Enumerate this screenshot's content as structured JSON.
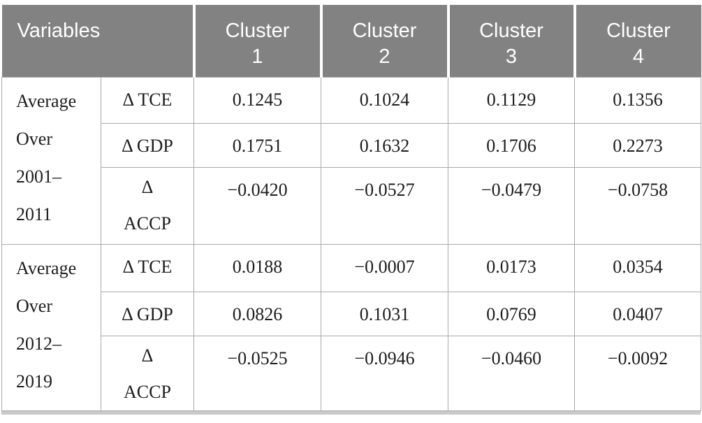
{
  "table": {
    "header": {
      "variables_label": "Variables",
      "clusters": [
        {
          "line1": "Cluster",
          "line2": "1"
        },
        {
          "line1": "Cluster",
          "line2": "2"
        },
        {
          "line1": "Cluster",
          "line2": "3"
        },
        {
          "line1": "Cluster",
          "line2": "4"
        }
      ]
    },
    "groups": [
      {
        "label_lines": [
          "Average",
          "Over",
          "2001–",
          "2011"
        ],
        "rows": [
          {
            "variable_lines": [
              "Δ TCE"
            ],
            "values": [
              "0.1245",
              "0.1024",
              "0.1129",
              "0.1356"
            ]
          },
          {
            "variable_lines": [
              "Δ GDP"
            ],
            "values": [
              "0.1751",
              "0.1632",
              "0.1706",
              "0.2273"
            ]
          },
          {
            "variable_lines": [
              "Δ",
              "ACCP"
            ],
            "values": [
              "−0.0420",
              "−0.0527",
              "−0.0479",
              "−0.0758"
            ]
          }
        ]
      },
      {
        "label_lines": [
          "Average",
          "Over",
          "2012–",
          "2019"
        ],
        "rows": [
          {
            "variable_lines": [
              "Δ TCE"
            ],
            "values": [
              "0.0188",
              "−0.0007",
              "0.0173",
              "0.0354"
            ]
          },
          {
            "variable_lines": [
              "Δ GDP"
            ],
            "values": [
              "0.0826",
              "0.1031",
              "0.0769",
              "0.0407"
            ]
          },
          {
            "variable_lines": [
              "Δ",
              "ACCP"
            ],
            "values": [
              "−0.0525",
              "−0.0946",
              "−0.0460",
              "−0.0092"
            ]
          }
        ]
      }
    ],
    "colors": {
      "header_bg": "#828282",
      "header_text": "#ffffff",
      "body_text": "#1d1d1d",
      "grid_line": "#aaaaaa",
      "bottom_rule": "#c9c9c9"
    }
  }
}
